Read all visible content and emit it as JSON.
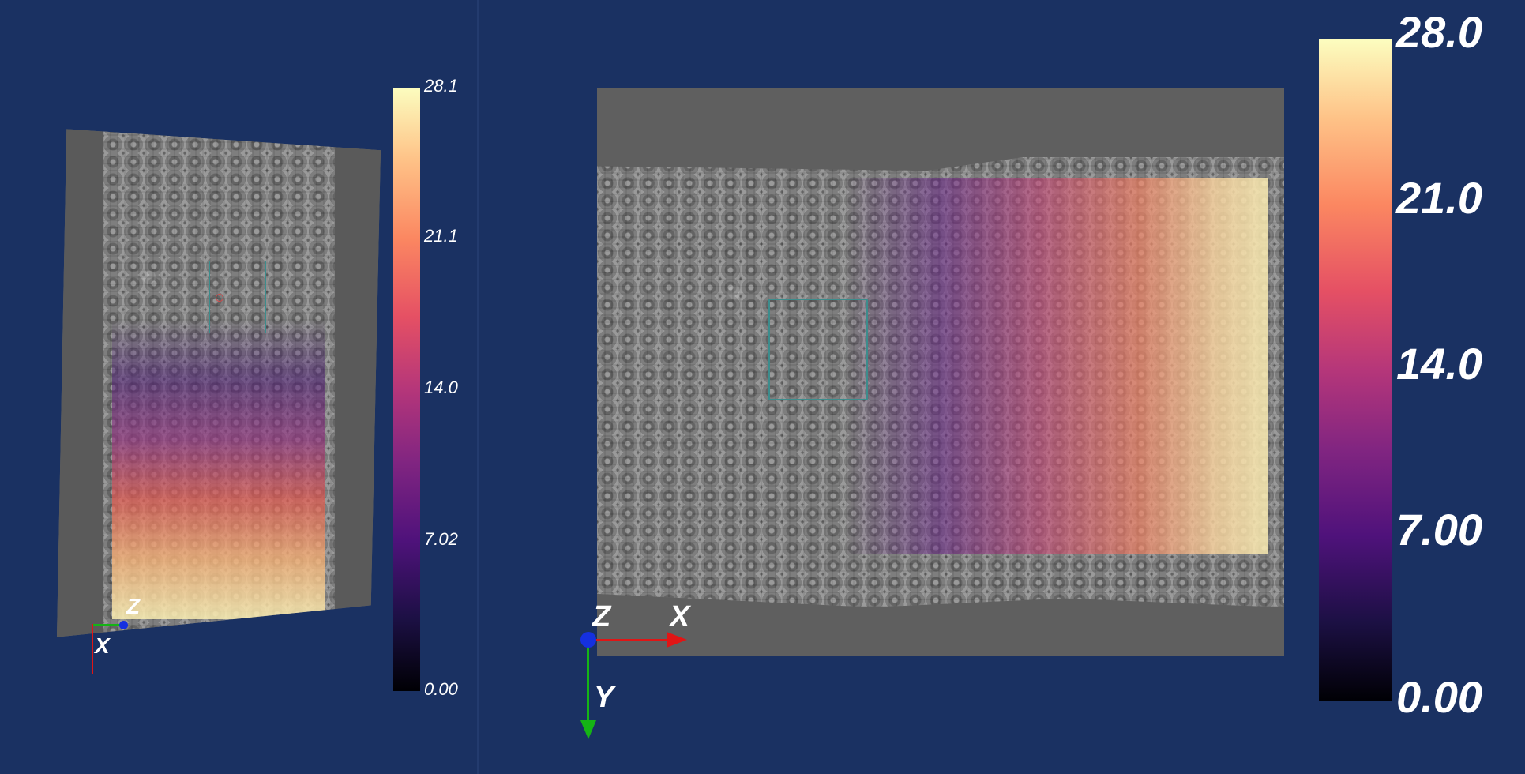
{
  "left_view": {
    "colorbar_ticks": [
      "28.1",
      "21.1",
      "14.0",
      "7.02",
      "0.00"
    ],
    "axes": {
      "x": "X",
      "z": "Z"
    }
  },
  "right_view": {
    "colorbar_ticks": [
      "28.0",
      "21.0",
      "14.0",
      "7.00",
      "0.00"
    ],
    "axes": {
      "x": "X",
      "y": "Y",
      "z": "Z"
    }
  },
  "colors": {
    "background": "#1a3162",
    "roi_box": "#3d8c8c",
    "axis_x": "#e01515",
    "axis_y": "#15b415",
    "axis_z": "#1530e0",
    "colormap": "magma"
  }
}
